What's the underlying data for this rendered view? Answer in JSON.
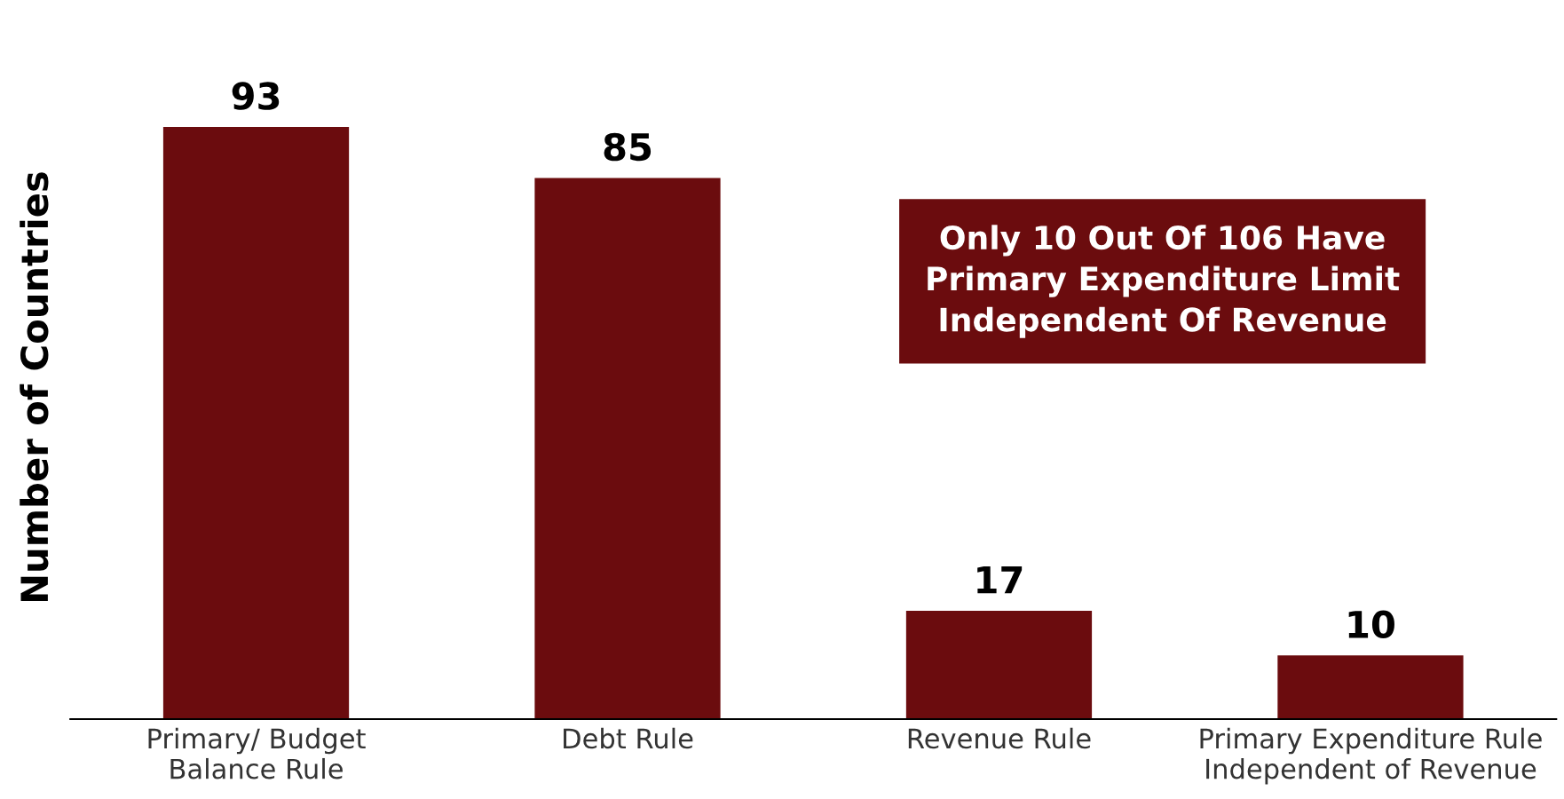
{
  "chart_data": {
    "type": "bar",
    "ylabel": "Number of Countries",
    "categories": [
      "Primary/ Budget\nBalance Rule",
      "Debt Rule",
      "Revenue Rule",
      "Primary Expenditure Rule\nIndependent of Revenue"
    ],
    "values": [
      93,
      85,
      17,
      10
    ],
    "color": "#6b0c0e",
    "data_labels": true,
    "annotations": [
      "Only 10 Out Of 106 Have\nPrimary Expenditure Limit\nIndependent Of Revenue"
    ]
  }
}
